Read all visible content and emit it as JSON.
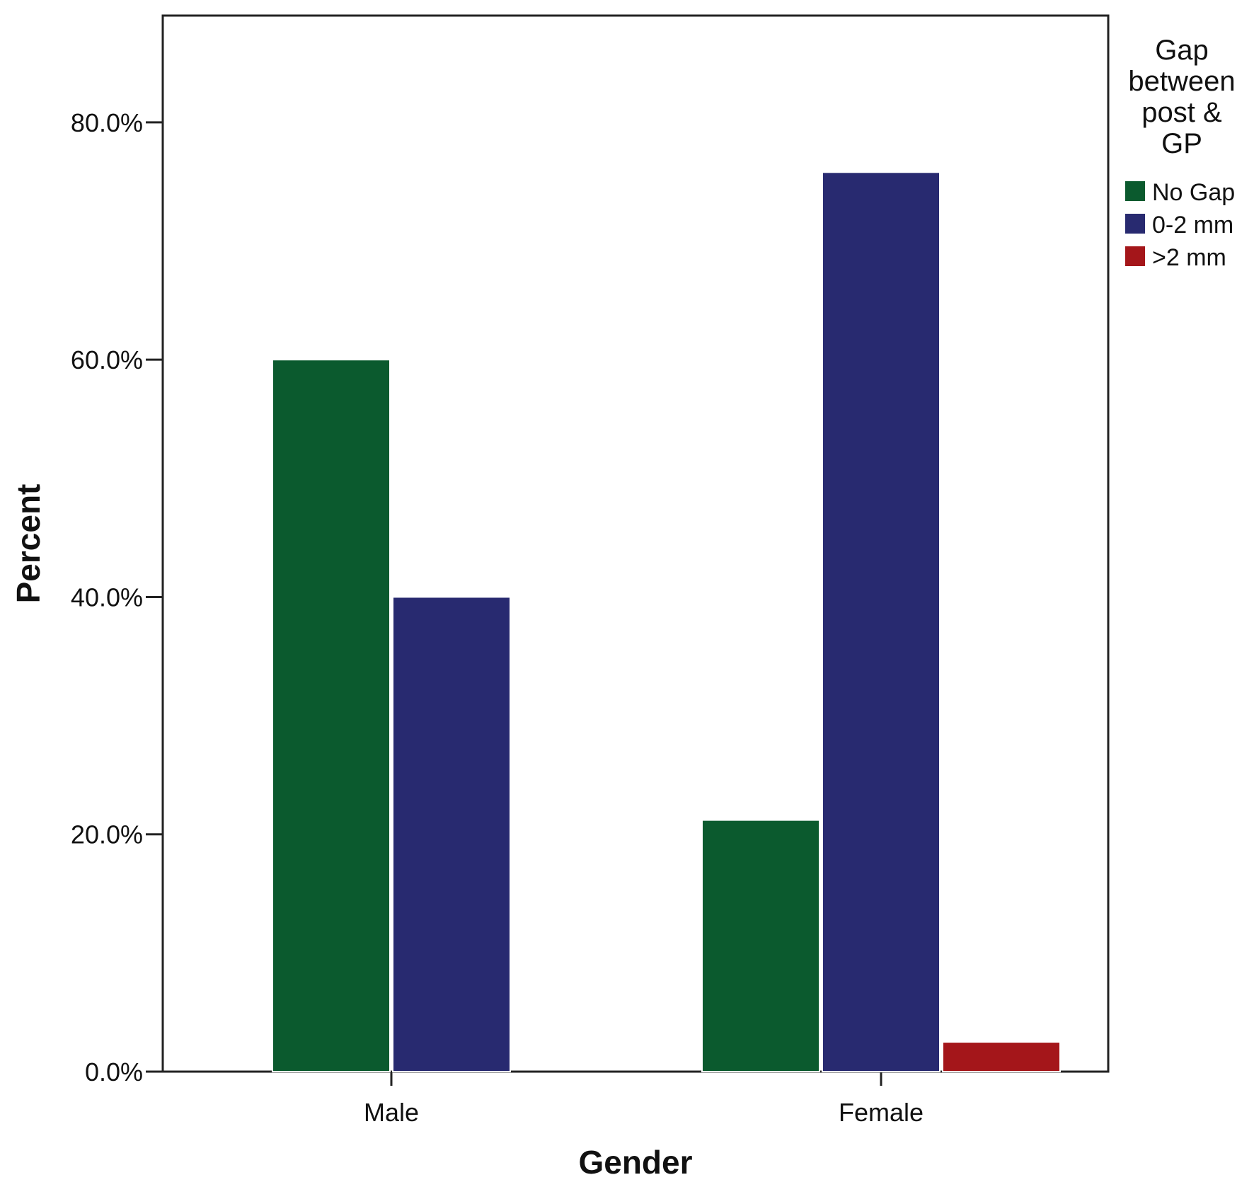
{
  "chart_data": {
    "type": "bar",
    "title": "",
    "xlabel": "Gender",
    "ylabel": "Percent",
    "categories": [
      "Male",
      "Female"
    ],
    "series": [
      {
        "name": "No Gap",
        "color": "#0b5a2e",
        "values": [
          60.0,
          21.2
        ]
      },
      {
        "name": "0-2 mm",
        "color": "#282a70",
        "values": [
          40.0,
          75.8
        ]
      },
      {
        "name": ">2 mm",
        "color": "#a4161a",
        "values": [
          0.0,
          2.5
        ]
      }
    ],
    "ylim": [
      0,
      89
    ],
    "yticks": [
      0,
      20,
      40,
      60,
      80
    ],
    "ytick_labels": [
      "0.0%",
      "20.0%",
      "40.0%",
      "60.0%",
      "80.0%"
    ],
    "grid": false,
    "legend": {
      "title_lines": [
        "Gap",
        "between",
        "post &",
        "GP"
      ],
      "placement": "right"
    }
  }
}
